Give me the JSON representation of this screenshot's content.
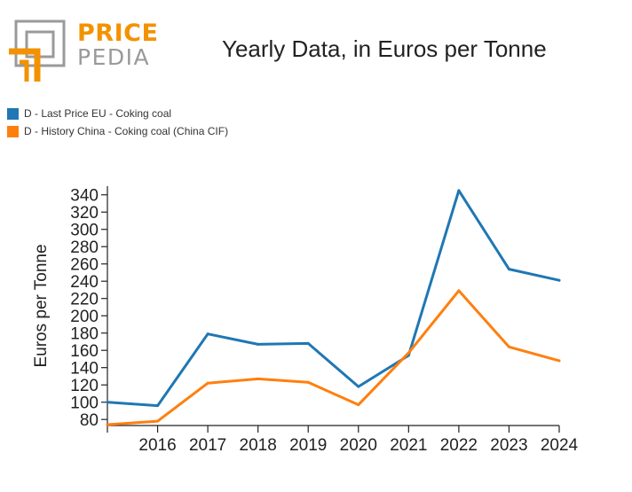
{
  "logo": {
    "word1": "PRICE",
    "word2": "PEDIA"
  },
  "colors": {
    "series1": "#1f77b4",
    "series2": "#ff7f0e",
    "logo_orange": "#f39200",
    "logo_gray": "#9a9a9a"
  },
  "chart_data": {
    "type": "line",
    "title": "Yearly Data, in Euros per Tonne",
    "ylabel": "Euros per Tonne",
    "xlabel": "",
    "x": [
      2015,
      2016,
      2017,
      2018,
      2019,
      2020,
      2021,
      2022,
      2023,
      2024
    ],
    "x_tick_labels": [
      "2016",
      "2017",
      "2018",
      "2019",
      "2020",
      "2021",
      "2022",
      "2023",
      "2024"
    ],
    "y_ticks": [
      80,
      100,
      120,
      140,
      160,
      180,
      200,
      220,
      240,
      260,
      280,
      300,
      320,
      340
    ],
    "ylim": [
      73,
      350
    ],
    "xlim": [
      2015,
      2024
    ],
    "legend_position": "top-left",
    "grid": false,
    "series": [
      {
        "name": "D - Last Price EU - Coking coal",
        "color": "#1f77b4",
        "values": [
          100,
          96,
          179,
          167,
          168,
          118,
          154,
          345,
          254,
          241
        ]
      },
      {
        "name": "D - History China - Coking coal (China CIF)",
        "color": "#ff7f0e",
        "values": [
          74,
          78,
          122,
          127,
          123,
          97,
          157,
          229,
          164,
          148
        ]
      }
    ]
  }
}
